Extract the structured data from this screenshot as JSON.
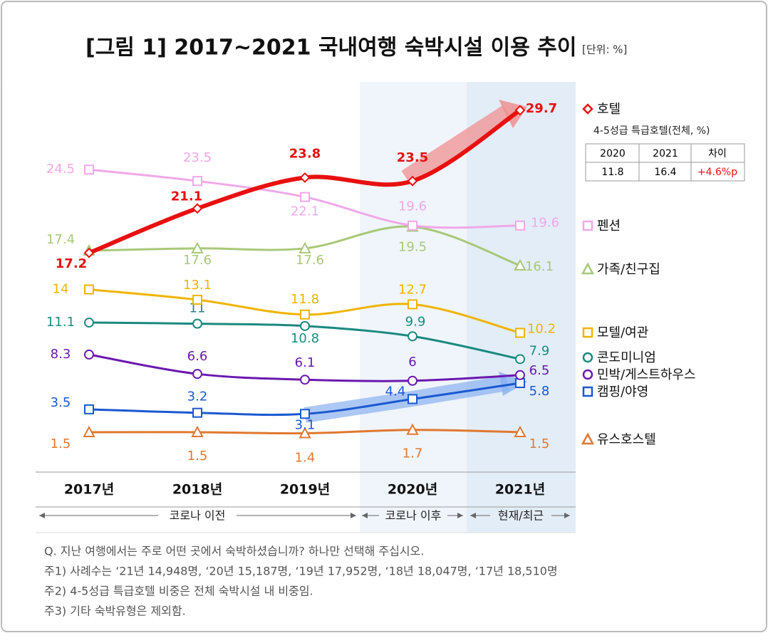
{
  "chart_data": {
    "type": "line",
    "title": "[그림 1] 2017~2021 국내여행 숙박시설 이용 추이",
    "unit": "[단위: %]",
    "categories": [
      "2017년",
      "2018년",
      "2019년",
      "2020년",
      "2021년"
    ],
    "ylim": [
      0,
      30
    ],
    "series": [
      {
        "name": "호텔",
        "color": "#e81010",
        "marker": "diamond",
        "values": [
          17.2,
          21.1,
          23.8,
          23.5,
          29.7
        ]
      },
      {
        "name": "펜션",
        "color": "#f0a8e8",
        "marker": "square",
        "values": [
          24.5,
          23.5,
          22.1,
          19.6,
          19.6
        ]
      },
      {
        "name": "가족/친구집",
        "color": "#a8c878",
        "marker": "triangle",
        "values": [
          17.4,
          17.6,
          17.6,
          19.5,
          16.1
        ]
      },
      {
        "name": "모텔/여관",
        "color": "#f0b400",
        "marker": "square",
        "values": [
          14.0,
          13.1,
          11.8,
          12.7,
          10.2
        ]
      },
      {
        "name": "콘도미니엄",
        "color": "#1a8a80",
        "marker": "circle",
        "values": [
          11.1,
          11.0,
          10.8,
          9.9,
          7.9
        ]
      },
      {
        "name": "민박/게스트하우스",
        "color": "#6a18b0",
        "marker": "circle",
        "values": [
          8.3,
          6.6,
          6.1,
          6.0,
          6.5
        ]
      },
      {
        "name": "캠핑/야영",
        "color": "#1a58d0",
        "marker": "square",
        "values": [
          3.5,
          3.2,
          3.1,
          4.4,
          5.8
        ]
      },
      {
        "name": "유스호스텔",
        "color": "#e07830",
        "marker": "triangle",
        "values": [
          1.5,
          1.5,
          1.4,
          1.7,
          1.5
        ]
      }
    ],
    "periods": [
      "코로나 이전",
      "코로나 이후",
      "현재/최근"
    ],
    "table": {
      "title": "4-5성급 특급호텔(전체, %)",
      "header": [
        "2020",
        "2021",
        "차이"
      ],
      "row": [
        11.8,
        16.4,
        "+4.6%p"
      ]
    },
    "notes": [
      "Q. 지난 여행에서는 주로 어떤 곳에서 숙박하셨습니까? 하나만 선택해 주십시오.",
      "주1) 사례수는 ‘21년 14,948명, ‘20년 15,187명, ‘19년 17,952명, ‘18년 18,047명, ‘17년 18,510명",
      "주2) 4-5성급 특급호텔 비중은 전체 숙박시설 내 비중임.",
      "주3) 기타 숙박유형은 제외함."
    ]
  }
}
